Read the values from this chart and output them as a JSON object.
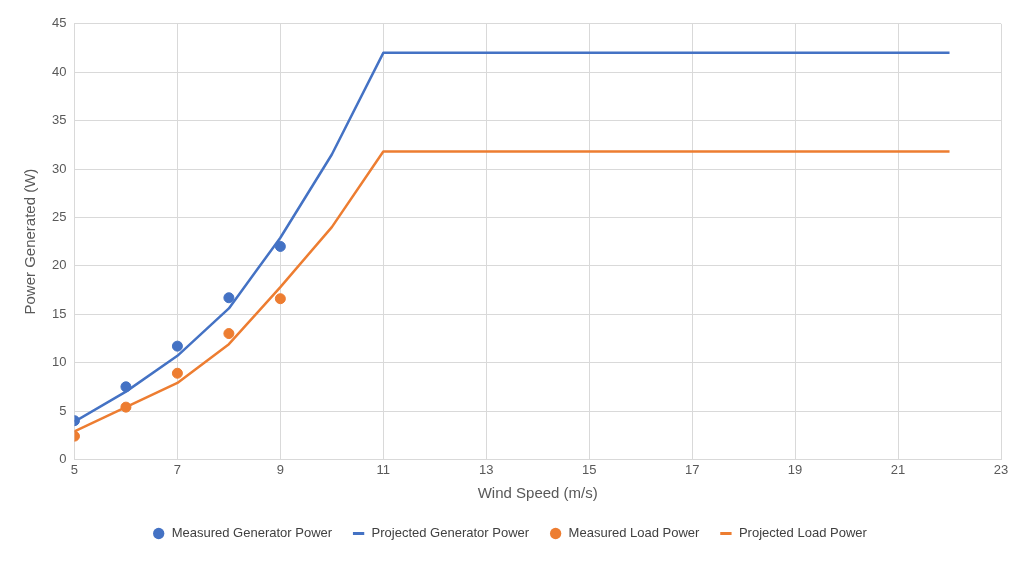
{
  "chart_data": {
    "type": "line",
    "xlabel": "Wind Speed (m/s)",
    "ylabel": "Power Generated (W)",
    "xlim": [
      5,
      23
    ],
    "xticks": [
      5,
      7,
      9,
      11,
      13,
      15,
      17,
      19,
      21,
      23
    ],
    "ylim": [
      0,
      45
    ],
    "yticks": [
      0,
      5,
      10,
      15,
      20,
      25,
      30,
      35,
      40,
      45
    ],
    "grid": true,
    "legend": "bottom",
    "series": [
      {
        "name": "Measured Generator Power",
        "type": "scatter",
        "marker": "circle",
        "color": "#4472c4",
        "x": [
          5,
          6,
          7,
          8,
          9
        ],
        "values": [
          4.0,
          7.5,
          11.7,
          16.7,
          22.0
        ]
      },
      {
        "name": "Projected Generator Power",
        "type": "line",
        "marker": "none",
        "color": "#4472c4",
        "x": [
          5,
          6,
          7,
          8,
          9,
          10,
          11,
          22
        ],
        "values": [
          3.9,
          7.0,
          10.7,
          15.6,
          22.9,
          31.5,
          42,
          42
        ]
      },
      {
        "name": "Measured Load Power",
        "type": "scatter",
        "marker": "circle",
        "color": "#ed7d31",
        "x": [
          5,
          6,
          7,
          8,
          9
        ],
        "values": [
          2.4,
          5.4,
          8.9,
          13.0,
          16.6
        ]
      },
      {
        "name": "Projected Load Power",
        "type": "line",
        "marker": "none",
        "color": "#ed7d31",
        "x": [
          5,
          6,
          7,
          8,
          9,
          10,
          11,
          22
        ],
        "values": [
          2.9,
          5.4,
          7.9,
          11.9,
          17.8,
          24.0,
          31.8,
          31.8
        ]
      }
    ]
  }
}
